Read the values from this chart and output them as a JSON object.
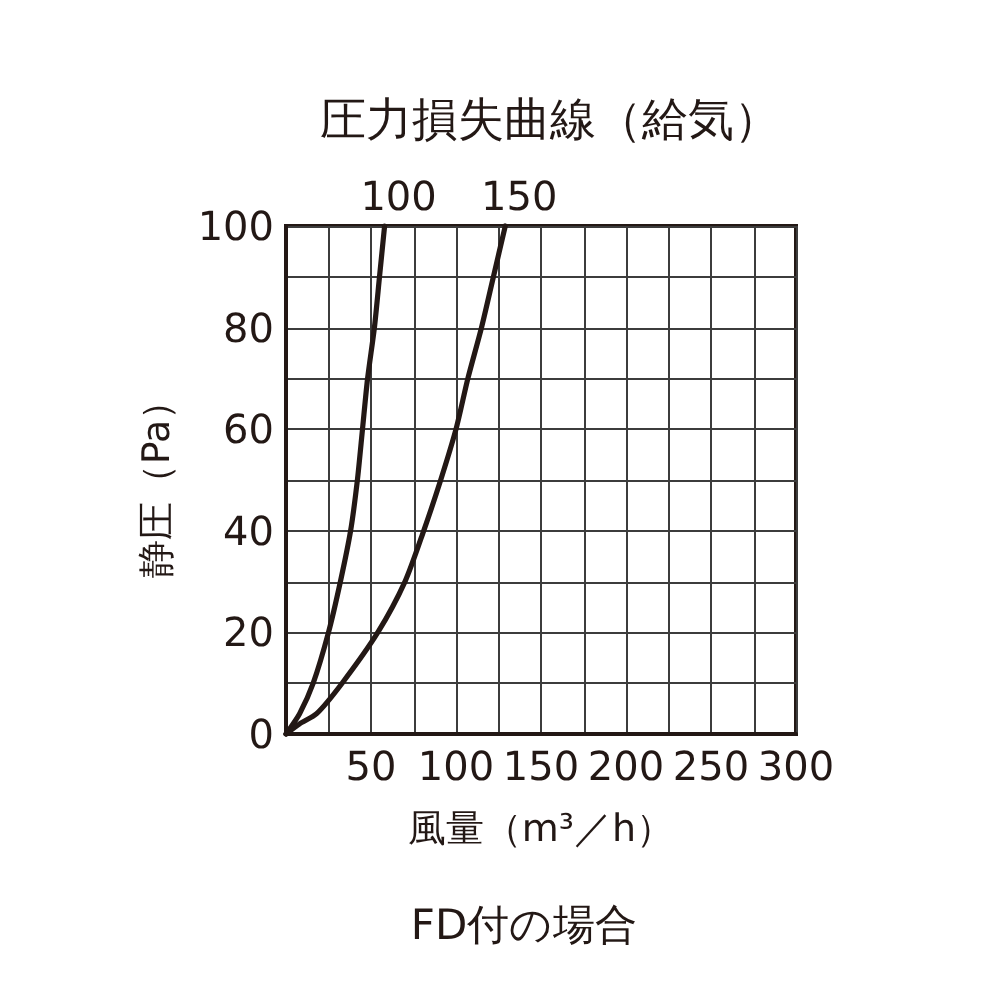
{
  "chart_data": {
    "type": "line",
    "title": "圧力損失曲線（給気）",
    "xlabel": "風量（m³／h）",
    "ylabel": "静圧（Pa）",
    "series": [
      {
        "name": "100",
        "color": "#231815",
        "x": [
          0,
          8,
          16,
          25,
          32,
          38,
          42,
          45,
          48,
          52,
          55,
          58
        ],
        "values": [
          0,
          4,
          10,
          20,
          30,
          40,
          50,
          60,
          70,
          80,
          90,
          100
        ]
      },
      {
        "name": "150",
        "color": "#231815",
        "x": [
          0,
          8,
          18,
          33,
          54,
          70,
          81,
          91,
          100,
          107,
          115,
          122,
          129
        ],
        "values": [
          0,
          2,
          4,
          10,
          20,
          30,
          40,
          50,
          60,
          70,
          80,
          90,
          100
        ]
      }
    ],
    "xlim": [
      0,
      300
    ],
    "xticks": [
      {
        "value": 0,
        "label": null
      },
      {
        "value": 25,
        "label": null
      },
      50,
      {
        "value": 75,
        "label": null
      },
      100,
      {
        "value": 125,
        "label": null
      },
      150,
      {
        "value": 175,
        "label": null
      },
      200,
      {
        "value": 225,
        "label": null
      },
      250,
      {
        "value": 275,
        "label": null
      },
      300
    ],
    "ylim": [
      0,
      100
    ],
    "yticks": [
      0,
      {
        "value": 10,
        "label": null
      },
      20,
      {
        "value": 30,
        "label": null
      },
      40,
      {
        "value": 50,
        "label": null
      },
      60,
      {
        "value": 70,
        "label": null
      },
      80,
      {
        "value": 90,
        "label": null
      },
      100
    ],
    "grid": true,
    "legend": false,
    "marker": "none",
    "line_style": "solid",
    "annotations": [
      "FD付の場合"
    ]
  }
}
